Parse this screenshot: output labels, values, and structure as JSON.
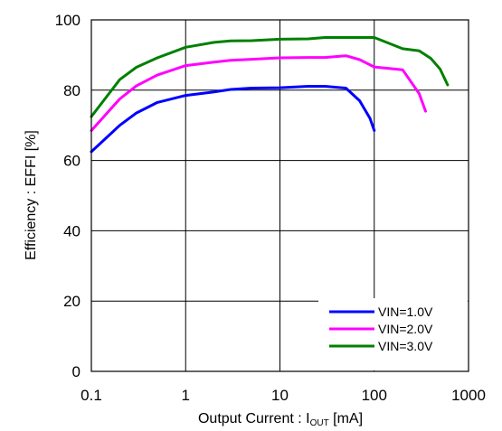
{
  "chart_data": {
    "type": "line",
    "x_scale": "log",
    "xlim": [
      0.1,
      1000
    ],
    "ylim": [
      0,
      100
    ],
    "x_ticks": [
      {
        "value": 0.1,
        "label": "0.1"
      },
      {
        "value": 1,
        "label": "1"
      },
      {
        "value": 10,
        "label": "10"
      },
      {
        "value": 100,
        "label": "100"
      },
      {
        "value": 1000,
        "label": "1000"
      }
    ],
    "y_ticks": [
      {
        "value": 0,
        "label": "0"
      },
      {
        "value": 20,
        "label": "20"
      },
      {
        "value": 40,
        "label": "40"
      },
      {
        "value": 60,
        "label": "60"
      },
      {
        "value": 80,
        "label": "80"
      },
      {
        "value": 100,
        "label": "100"
      }
    ],
    "xlabel_main": "Output Current : I",
    "xlabel_sub": "OUT",
    "xlabel_unit": " [mA]",
    "ylabel": "Efficiency : EFFI  [%]",
    "grid": true,
    "legend_position": "bottom-right",
    "series": [
      {
        "name": "VIN=1.0V",
        "color": "#0000ff",
        "x": [
          0.1,
          0.2,
          0.3,
          0.5,
          1,
          2,
          3,
          5,
          10,
          20,
          30,
          50,
          70,
          90,
          100
        ],
        "y": [
          62.5,
          70,
          73.5,
          76.5,
          78.5,
          79.5,
          80.2,
          80.6,
          80.7,
          81.1,
          81.1,
          80.6,
          77,
          72,
          68.5
        ]
      },
      {
        "name": "VIN=2.0V",
        "color": "#ff00ff",
        "x": [
          0.1,
          0.2,
          0.3,
          0.5,
          1,
          2,
          3,
          5,
          10,
          20,
          30,
          50,
          70,
          100,
          200,
          300,
          350
        ],
        "y": [
          68.5,
          77.5,
          81.2,
          84.3,
          87,
          88,
          88.5,
          88.8,
          89.2,
          89.3,
          89.3,
          89.8,
          88.7,
          86.6,
          85.8,
          79,
          74
        ]
      },
      {
        "name": "VIN=3.0V",
        "color": "#008000",
        "x": [
          0.1,
          0.2,
          0.3,
          0.5,
          1,
          2,
          3,
          5,
          10,
          20,
          30,
          50,
          100,
          200,
          300,
          400,
          500,
          600
        ],
        "y": [
          72.5,
          83,
          86.5,
          89.2,
          92.2,
          93.6,
          94,
          94.1,
          94.5,
          94.6,
          95,
          95,
          95,
          91.8,
          91.2,
          89,
          86,
          81.5
        ]
      }
    ]
  }
}
